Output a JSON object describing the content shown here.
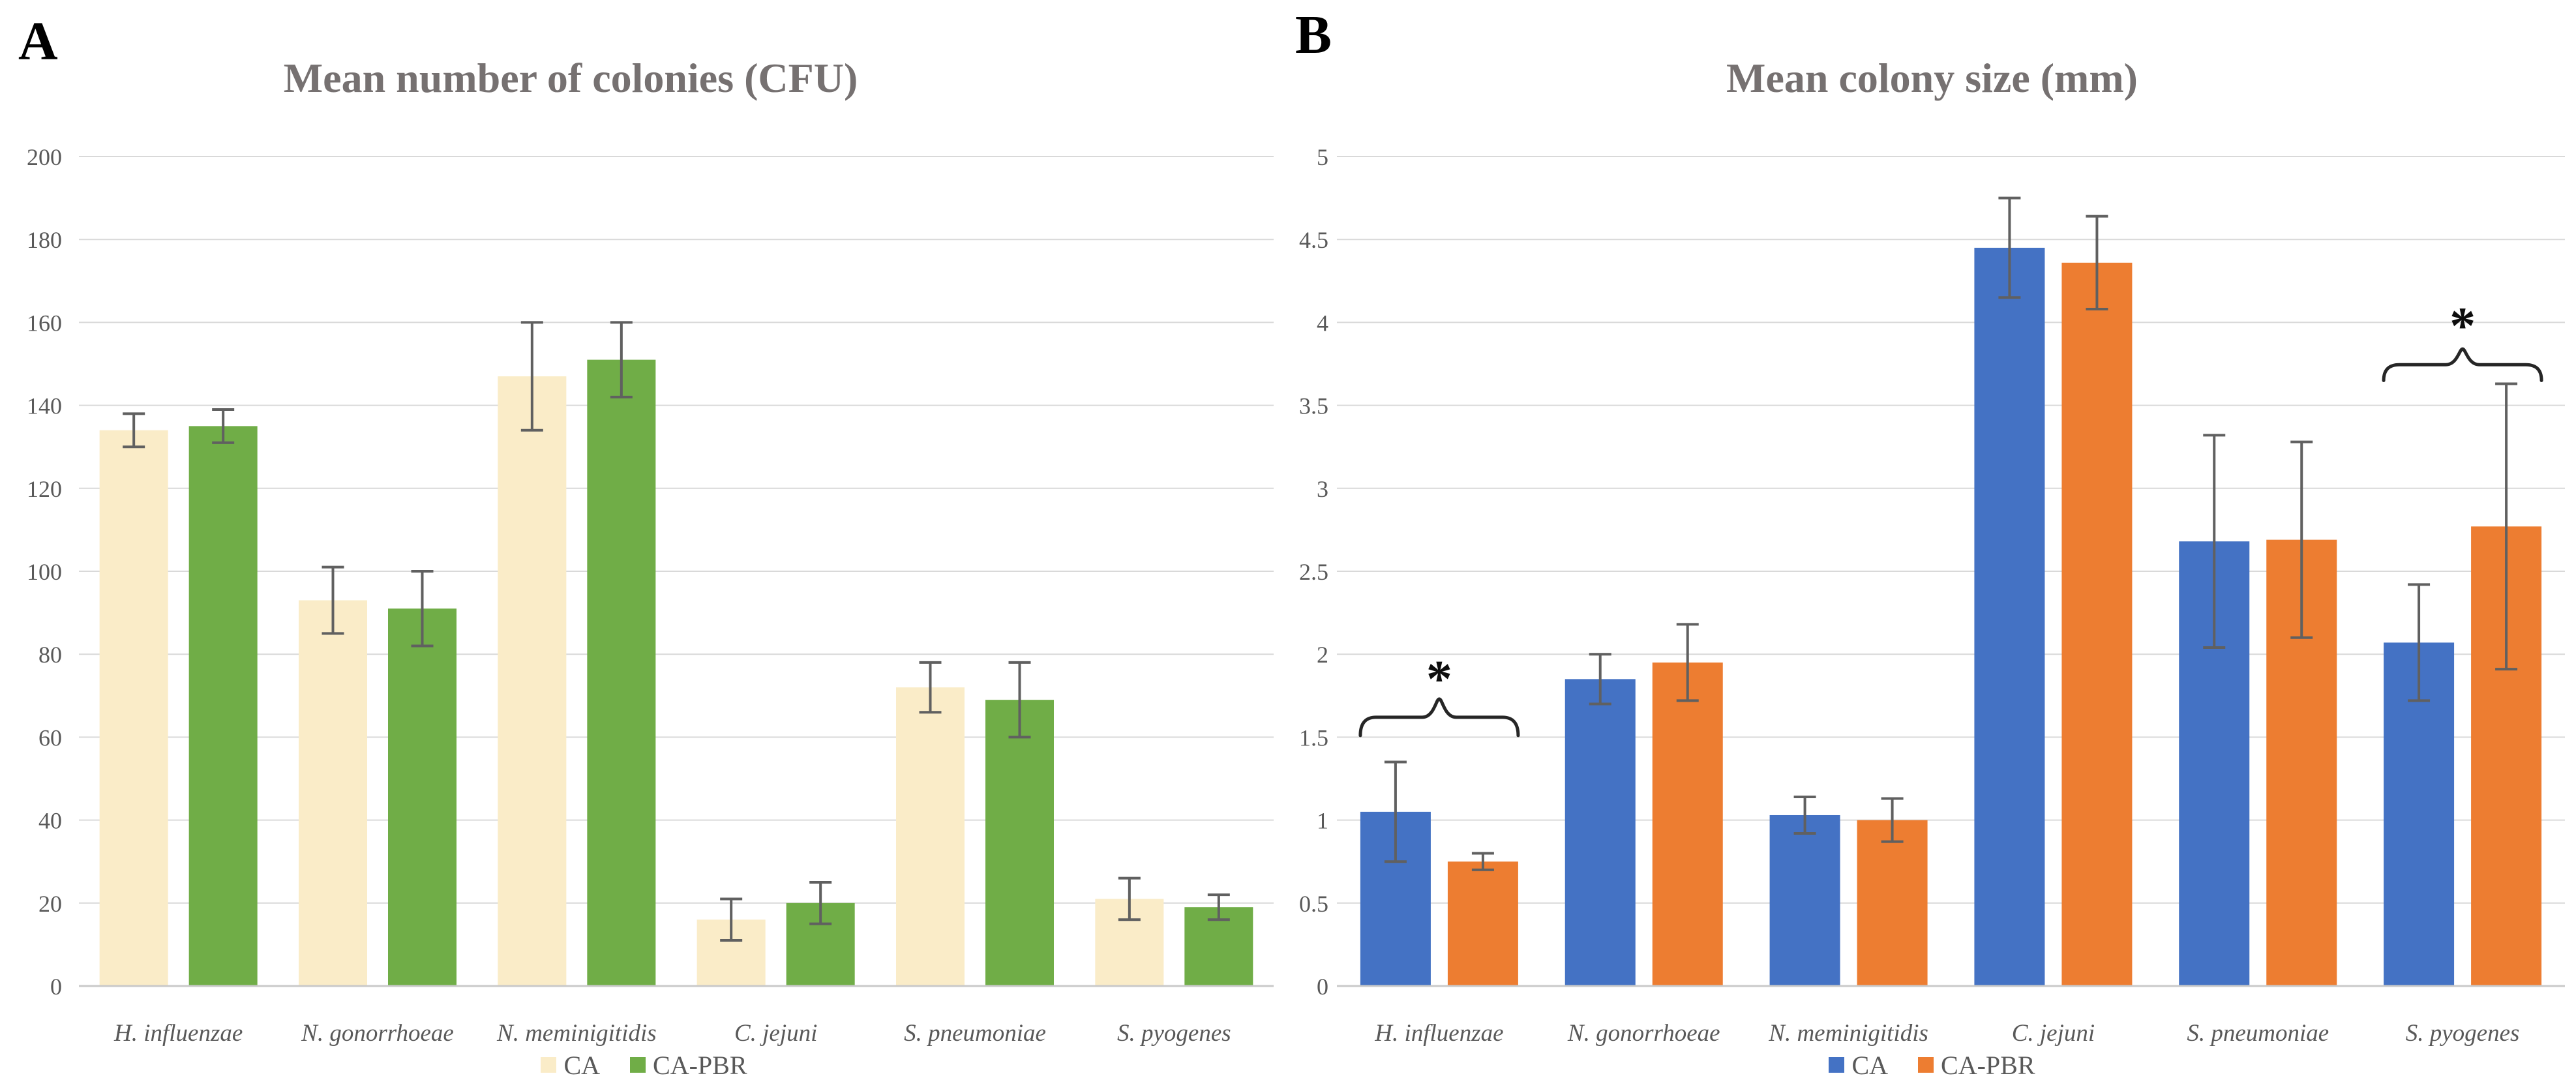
{
  "figure": {
    "panels": [
      {
        "label": "A"
      },
      {
        "label": "B"
      }
    ]
  },
  "chart_data": [
    {
      "panel": "A",
      "type": "bar",
      "title": "Mean number of colonies (CFU)",
      "categories": [
        "H. influenzae",
        "N. gonorrhoeae",
        "N. meminigitidis",
        "C. jejuni",
        "S. pneumoniae",
        "S. pyogenes"
      ],
      "series": [
        {
          "name": "CA",
          "color": "#FAECC8",
          "values": [
            134,
            93,
            147,
            16,
            72,
            21
          ],
          "errors": [
            4,
            8,
            13,
            5,
            6,
            5
          ]
        },
        {
          "name": "CA-PBR",
          "color": "#70AD47",
          "values": [
            135,
            91,
            151,
            20,
            69,
            19
          ],
          "errors": [
            4,
            9,
            9,
            5,
            9,
            3
          ]
        }
      ],
      "ylim": [
        0,
        200
      ],
      "ytick_step": 20,
      "yticks": [
        "0",
        "20",
        "40",
        "60",
        "80",
        "100",
        "120",
        "140",
        "160",
        "180",
        "200"
      ],
      "grid": true,
      "legend_position": "bottom",
      "error_bars": true,
      "annotations": []
    },
    {
      "panel": "B",
      "type": "bar",
      "title": "Mean colony size (mm)",
      "categories": [
        "H. influenzae",
        "N. gonorrhoeae",
        "N. meminigitidis",
        "C. jejuni",
        "S. pneumoniae",
        "S. pyogenes"
      ],
      "series": [
        {
          "name": "CA",
          "color": "#4472C4",
          "values": [
            1.05,
            1.85,
            1.03,
            4.45,
            2.68,
            2.07
          ],
          "errors": [
            0.3,
            0.15,
            0.11,
            0.3,
            0.64,
            0.35
          ]
        },
        {
          "name": "CA-PBR",
          "color": "#ED7D31",
          "values": [
            0.75,
            1.95,
            1.0,
            4.36,
            2.69,
            2.77
          ],
          "errors": [
            0.05,
            0.23,
            0.13,
            0.28,
            0.59,
            0.86
          ]
        }
      ],
      "ylim": [
        0,
        5
      ],
      "ytick_step": 0.5,
      "yticks": [
        "0",
        "0.5",
        "1",
        "1.5",
        "2",
        "2.5",
        "3",
        "3.5",
        "4",
        "4.5",
        "5"
      ],
      "grid": true,
      "legend_position": "bottom",
      "error_bars": true,
      "annotations": [
        {
          "category": "H. influenzae",
          "text": "*",
          "bracket_end_value": 1.51,
          "bracket_peak_value": 1.73,
          "star_value": 1.89
        },
        {
          "category": "S. pyogenes",
          "text": "*",
          "bracket_end_value": 3.65,
          "bracket_peak_value": 3.84,
          "star_value": 4.02
        }
      ]
    }
  ],
  "style": {
    "title_color": "#767171",
    "axis_text_color": "#595959",
    "grid_color": "#D9D9D9",
    "axis_line_color": "#C9C9C9",
    "error_bar_color": "#606060",
    "annotation_color": "#262626",
    "asterisk_color": "#0D0D0D",
    "background": "#FFFFFF"
  }
}
